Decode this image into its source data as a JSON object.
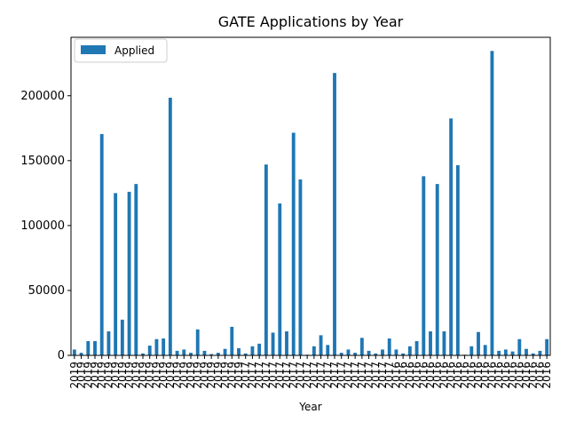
{
  "chart_data": {
    "type": "bar",
    "title": "GATE Applications by Year",
    "xlabel": "Year",
    "ylabel": "",
    "ylim": [
      0,
      245000
    ],
    "yticks": [
      0,
      50000,
      100000,
      150000,
      200000
    ],
    "legend": {
      "placement": "top-left",
      "entries": [
        "Applied"
      ]
    },
    "grid": false,
    "bar_color": "#1f77b4",
    "categories": [
      "2019",
      "2019",
      "2019",
      "2019",
      "2019",
      "2019",
      "2019",
      "2019",
      "2019",
      "2019",
      "2019",
      "2019",
      "2019",
      "2019",
      "2019",
      "2019",
      "2019",
      "2019",
      "2019",
      "2019",
      "2019",
      "2019",
      "2019",
      "2019",
      "2019",
      "2017",
      "2017",
      "2017",
      "2017",
      "2017",
      "2017",
      "2017",
      "2017",
      "2017",
      "2017",
      "2017",
      "2017",
      "2017",
      "2017",
      "2017",
      "2017",
      "2017",
      "2017",
      "2017",
      "2017",
      "2017",
      "2017",
      "2016",
      "2016",
      "2016",
      "2016",
      "2016",
      "2016",
      "2016",
      "2016",
      "2016",
      "2016",
      "2016",
      "2016",
      "2016",
      "2016",
      "2016",
      "2016",
      "2016",
      "2016",
      "2016",
      "2016",
      "2016",
      "2016",
      "2016"
    ],
    "series": [
      {
        "name": "Applied",
        "values": [
          4500,
          2000,
          11000,
          11000,
          170500,
          18500,
          125000,
          27500,
          126000,
          132000,
          1500,
          7500,
          12500,
          13000,
          198500,
          3500,
          4500,
          2000,
          20000,
          3500,
          1000,
          2000,
          5000,
          22000,
          5500,
          1500,
          7000,
          9000,
          147000,
          17500,
          117000,
          18500,
          171500,
          135500,
          500,
          7000,
          15500,
          8000,
          217500,
          2000,
          4500,
          2000,
          13500,
          3500,
          1500,
          4500,
          13000,
          4500,
          1500,
          7000,
          11000,
          138000,
          18500,
          132000,
          18500,
          182500,
          146500,
          500,
          7000,
          18000,
          8000,
          234500,
          3500,
          4500,
          3000,
          12500,
          5000,
          1500,
          3500,
          12500
        ]
      }
    ]
  }
}
